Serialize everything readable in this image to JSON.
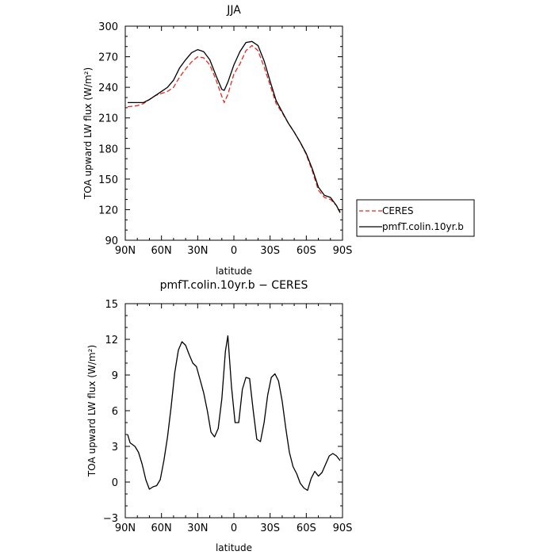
{
  "chart_data": [
    {
      "type": "line",
      "title": "JJA",
      "xlabel": "latitude",
      "ylabel": "TOA upward LW flux (W/m²)",
      "xlim": [
        90,
        -90
      ],
      "ylim": [
        90,
        300
      ],
      "x_ticks": [
        90,
        60,
        30,
        0,
        -30,
        -60,
        -90
      ],
      "x_tick_labels": [
        "90N",
        "60N",
        "30N",
        "0",
        "30S",
        "60S",
        "90S"
      ],
      "y_ticks": [
        90,
        120,
        150,
        180,
        210,
        240,
        270,
        300
      ],
      "y_tick_labels": [
        "90",
        "120",
        "150",
        "180",
        "210",
        "240",
        "270",
        "300"
      ],
      "legend": "outside-right",
      "series": [
        {
          "name": "CERES",
          "color": "#e8281e",
          "dash": "dashed",
          "x": [
            88,
            80,
            75,
            70,
            65,
            60,
            55,
            50,
            45,
            40,
            35,
            30,
            25,
            20,
            15,
            10,
            8,
            5,
            0,
            -5,
            -10,
            -15,
            -20,
            -25,
            -30,
            -35,
            -40,
            -45,
            -50,
            -55,
            -60,
            -65,
            -70,
            -75,
            -80,
            -85,
            -88
          ],
          "y": [
            221,
            222,
            224,
            228,
            232,
            234,
            236,
            240,
            250,
            258,
            265,
            270,
            269,
            262,
            248,
            231,
            225,
            233,
            253,
            263,
            276,
            281,
            276,
            260,
            242,
            224,
            215,
            205,
            196,
            186,
            174,
            158,
            139,
            132,
            130,
            124,
            118
          ]
        },
        {
          "name": "pmfT.colin.10yr.b",
          "color": "#000000",
          "dash": "solid",
          "x": [
            88,
            80,
            75,
            70,
            65,
            60,
            55,
            50,
            45,
            40,
            35,
            30,
            25,
            20,
            15,
            10,
            8,
            5,
            0,
            -5,
            -10,
            -15,
            -20,
            -25,
            -30,
            -35,
            -40,
            -45,
            -50,
            -55,
            -60,
            -65,
            -70,
            -75,
            -80,
            -85,
            -88
          ],
          "y": [
            225,
            225,
            225,
            228,
            232,
            236,
            240,
            247,
            259,
            267,
            274,
            277,
            275,
            267,
            252,
            238,
            237,
            245,
            262,
            275,
            284,
            285,
            281,
            266,
            246,
            227,
            216,
            205,
            196,
            186,
            175,
            160,
            142,
            134,
            132,
            124,
            117
          ]
        }
      ]
    },
    {
      "type": "line",
      "title": "pmfT.colin.10yr.b − CERES",
      "xlabel": "latitude",
      "ylabel": "TOA upward LW flux (W/m²)",
      "xlim": [
        90,
        -90
      ],
      "ylim": [
        -3,
        15
      ],
      "x_ticks": [
        90,
        60,
        30,
        0,
        -30,
        -60,
        -90
      ],
      "x_tick_labels": [
        "90N",
        "60N",
        "30N",
        "0",
        "30S",
        "60S",
        "90S"
      ],
      "y_ticks": [
        -3,
        0,
        3,
        6,
        9,
        12,
        15
      ],
      "y_tick_labels": [
        "−3",
        "0",
        "3",
        "6",
        "9",
        "12",
        "15"
      ],
      "series": [
        {
          "color": "#000000",
          "dash": "solid",
          "x": [
            88,
            86,
            82,
            79,
            76,
            73,
            70,
            67,
            64,
            61,
            58,
            55,
            52,
            49,
            46,
            43,
            40,
            37,
            34,
            31,
            28,
            25,
            22,
            19,
            16,
            13,
            10,
            7,
            5,
            2,
            -1,
            -4,
            -7,
            -10,
            -13,
            -16,
            -19,
            -22,
            -25,
            -28,
            -31,
            -34,
            -37,
            -40,
            -43,
            -46,
            -49,
            -52,
            -55,
            -58,
            -61,
            -64,
            -67,
            -70,
            -73,
            -76,
            -79,
            -82,
            -85,
            -88
          ],
          "y": [
            4.0,
            3.3,
            3.0,
            2.5,
            1.5,
            0.2,
            -0.6,
            -0.4,
            -0.3,
            0.2,
            1.8,
            3.8,
            6.3,
            9.2,
            11.1,
            11.8,
            11.5,
            10.7,
            10.0,
            9.7,
            8.6,
            7.5,
            6.0,
            4.2,
            3.8,
            4.5,
            7.0,
            11.0,
            12.3,
            8.0,
            5.0,
            5.0,
            7.8,
            8.8,
            8.7,
            6.0,
            3.6,
            3.4,
            5.0,
            7.3,
            8.8,
            9.1,
            8.5,
            6.8,
            4.5,
            2.5,
            1.3,
            0.7,
            -0.1,
            -0.5,
            -0.7,
            0.3,
            0.9,
            0.5,
            0.8,
            1.5,
            2.2,
            2.4,
            2.2,
            1.8
          ]
        }
      ]
    }
  ]
}
